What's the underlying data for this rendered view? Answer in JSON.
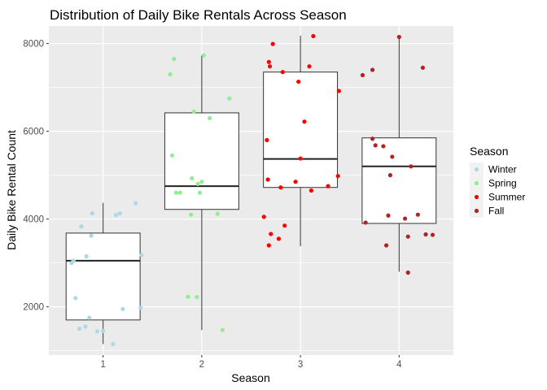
{
  "chart_data": {
    "type": "boxplot",
    "title": "Distribution of Daily Bike Rentals Across Season",
    "xlabel": "Season",
    "ylabel": "Daily Bike Rental Count",
    "categories": [
      "1",
      "2",
      "3",
      "4"
    ],
    "ylim": [
      900,
      8400
    ],
    "yticks": [
      2000,
      4000,
      6000,
      8000
    ],
    "grid": true,
    "legend": {
      "title": "Season",
      "placement": "right"
    },
    "series": [
      {
        "name": "Winter",
        "color": "#add8e6",
        "category": "1",
        "box": {
          "min": 1150,
          "q1": 1700,
          "median": 3050,
          "q3": 3680,
          "max": 4370
        },
        "points": [
          [
            -0.32,
            3000
          ],
          [
            -0.3,
            3050
          ],
          [
            -0.28,
            2200
          ],
          [
            -0.24,
            1500
          ],
          [
            -0.22,
            3830
          ],
          [
            -0.18,
            1550
          ],
          [
            -0.17,
            3150
          ],
          [
            -0.14,
            1750
          ],
          [
            -0.12,
            3620
          ],
          [
            -0.11,
            4130
          ],
          [
            -0.06,
            1440
          ],
          [
            0.0,
            1450
          ],
          [
            0.1,
            1150
          ],
          [
            0.13,
            4090
          ],
          [
            0.17,
            4130
          ],
          [
            0.2,
            1950
          ],
          [
            0.33,
            4360
          ],
          [
            0.38,
            1980
          ],
          [
            0.39,
            3180
          ]
        ]
      },
      {
        "name": "Spring",
        "color": "#90ee90",
        "category": "2",
        "box": {
          "min": 1470,
          "q1": 4220,
          "median": 4750,
          "q3": 6420,
          "max": 7730
        },
        "points": [
          [
            -0.32,
            7300
          ],
          [
            -0.3,
            5450
          ],
          [
            -0.28,
            7650
          ],
          [
            -0.26,
            4600
          ],
          [
            -0.22,
            4600
          ],
          [
            -0.14,
            2230
          ],
          [
            -0.11,
            4100
          ],
          [
            -0.1,
            4930
          ],
          [
            -0.08,
            6450
          ],
          [
            -0.05,
            2220
          ],
          [
            -0.04,
            4800
          ],
          [
            -0.02,
            4600
          ],
          [
            0.0,
            4850
          ],
          [
            0.02,
            7730
          ],
          [
            0.08,
            6300
          ],
          [
            0.16,
            4120
          ],
          [
            0.21,
            1470
          ],
          [
            0.28,
            6750
          ]
        ]
      },
      {
        "name": "Summer",
        "color": "#ff0000",
        "category": "3",
        "box": {
          "min": 3380,
          "q1": 4720,
          "median": 5370,
          "q3": 7350,
          "max": 8180
        },
        "points": [
          [
            -0.37,
            4050
          ],
          [
            -0.34,
            5800
          ],
          [
            -0.33,
            4900
          ],
          [
            -0.32,
            3400
          ],
          [
            -0.32,
            7580
          ],
          [
            -0.31,
            7480
          ],
          [
            -0.3,
            3660
          ],
          [
            -0.28,
            7990
          ],
          [
            -0.22,
            3550
          ],
          [
            -0.2,
            4720
          ],
          [
            -0.18,
            7350
          ],
          [
            -0.16,
            3850
          ],
          [
            -0.05,
            4850
          ],
          [
            -0.02,
            7130
          ],
          [
            0.0,
            5380
          ],
          [
            0.04,
            6220
          ],
          [
            0.09,
            7480
          ],
          [
            0.11,
            4650
          ],
          [
            0.13,
            8170
          ],
          [
            0.28,
            4750
          ],
          [
            0.38,
            4980
          ],
          [
            0.39,
            6920
          ]
        ]
      },
      {
        "name": "Fall",
        "color": "#b22222",
        "category": "4",
        "box": {
          "min": 2800,
          "q1": 3900,
          "median": 5200,
          "q3": 5850,
          "max": 8150
        },
        "points": [
          [
            -0.37,
            7280
          ],
          [
            -0.34,
            3920
          ],
          [
            -0.27,
            7400
          ],
          [
            -0.27,
            5830
          ],
          [
            -0.24,
            5680
          ],
          [
            -0.16,
            5660
          ],
          [
            -0.13,
            3400
          ],
          [
            -0.11,
            4080
          ],
          [
            -0.09,
            5000
          ],
          [
            -0.07,
            5420
          ],
          [
            0.0,
            8150
          ],
          [
            0.06,
            4010
          ],
          [
            0.09,
            3600
          ],
          [
            0.09,
            2780
          ],
          [
            0.12,
            5200
          ],
          [
            0.19,
            4100
          ],
          [
            0.24,
            7450
          ],
          [
            0.27,
            3650
          ],
          [
            0.34,
            3640
          ]
        ]
      }
    ]
  }
}
